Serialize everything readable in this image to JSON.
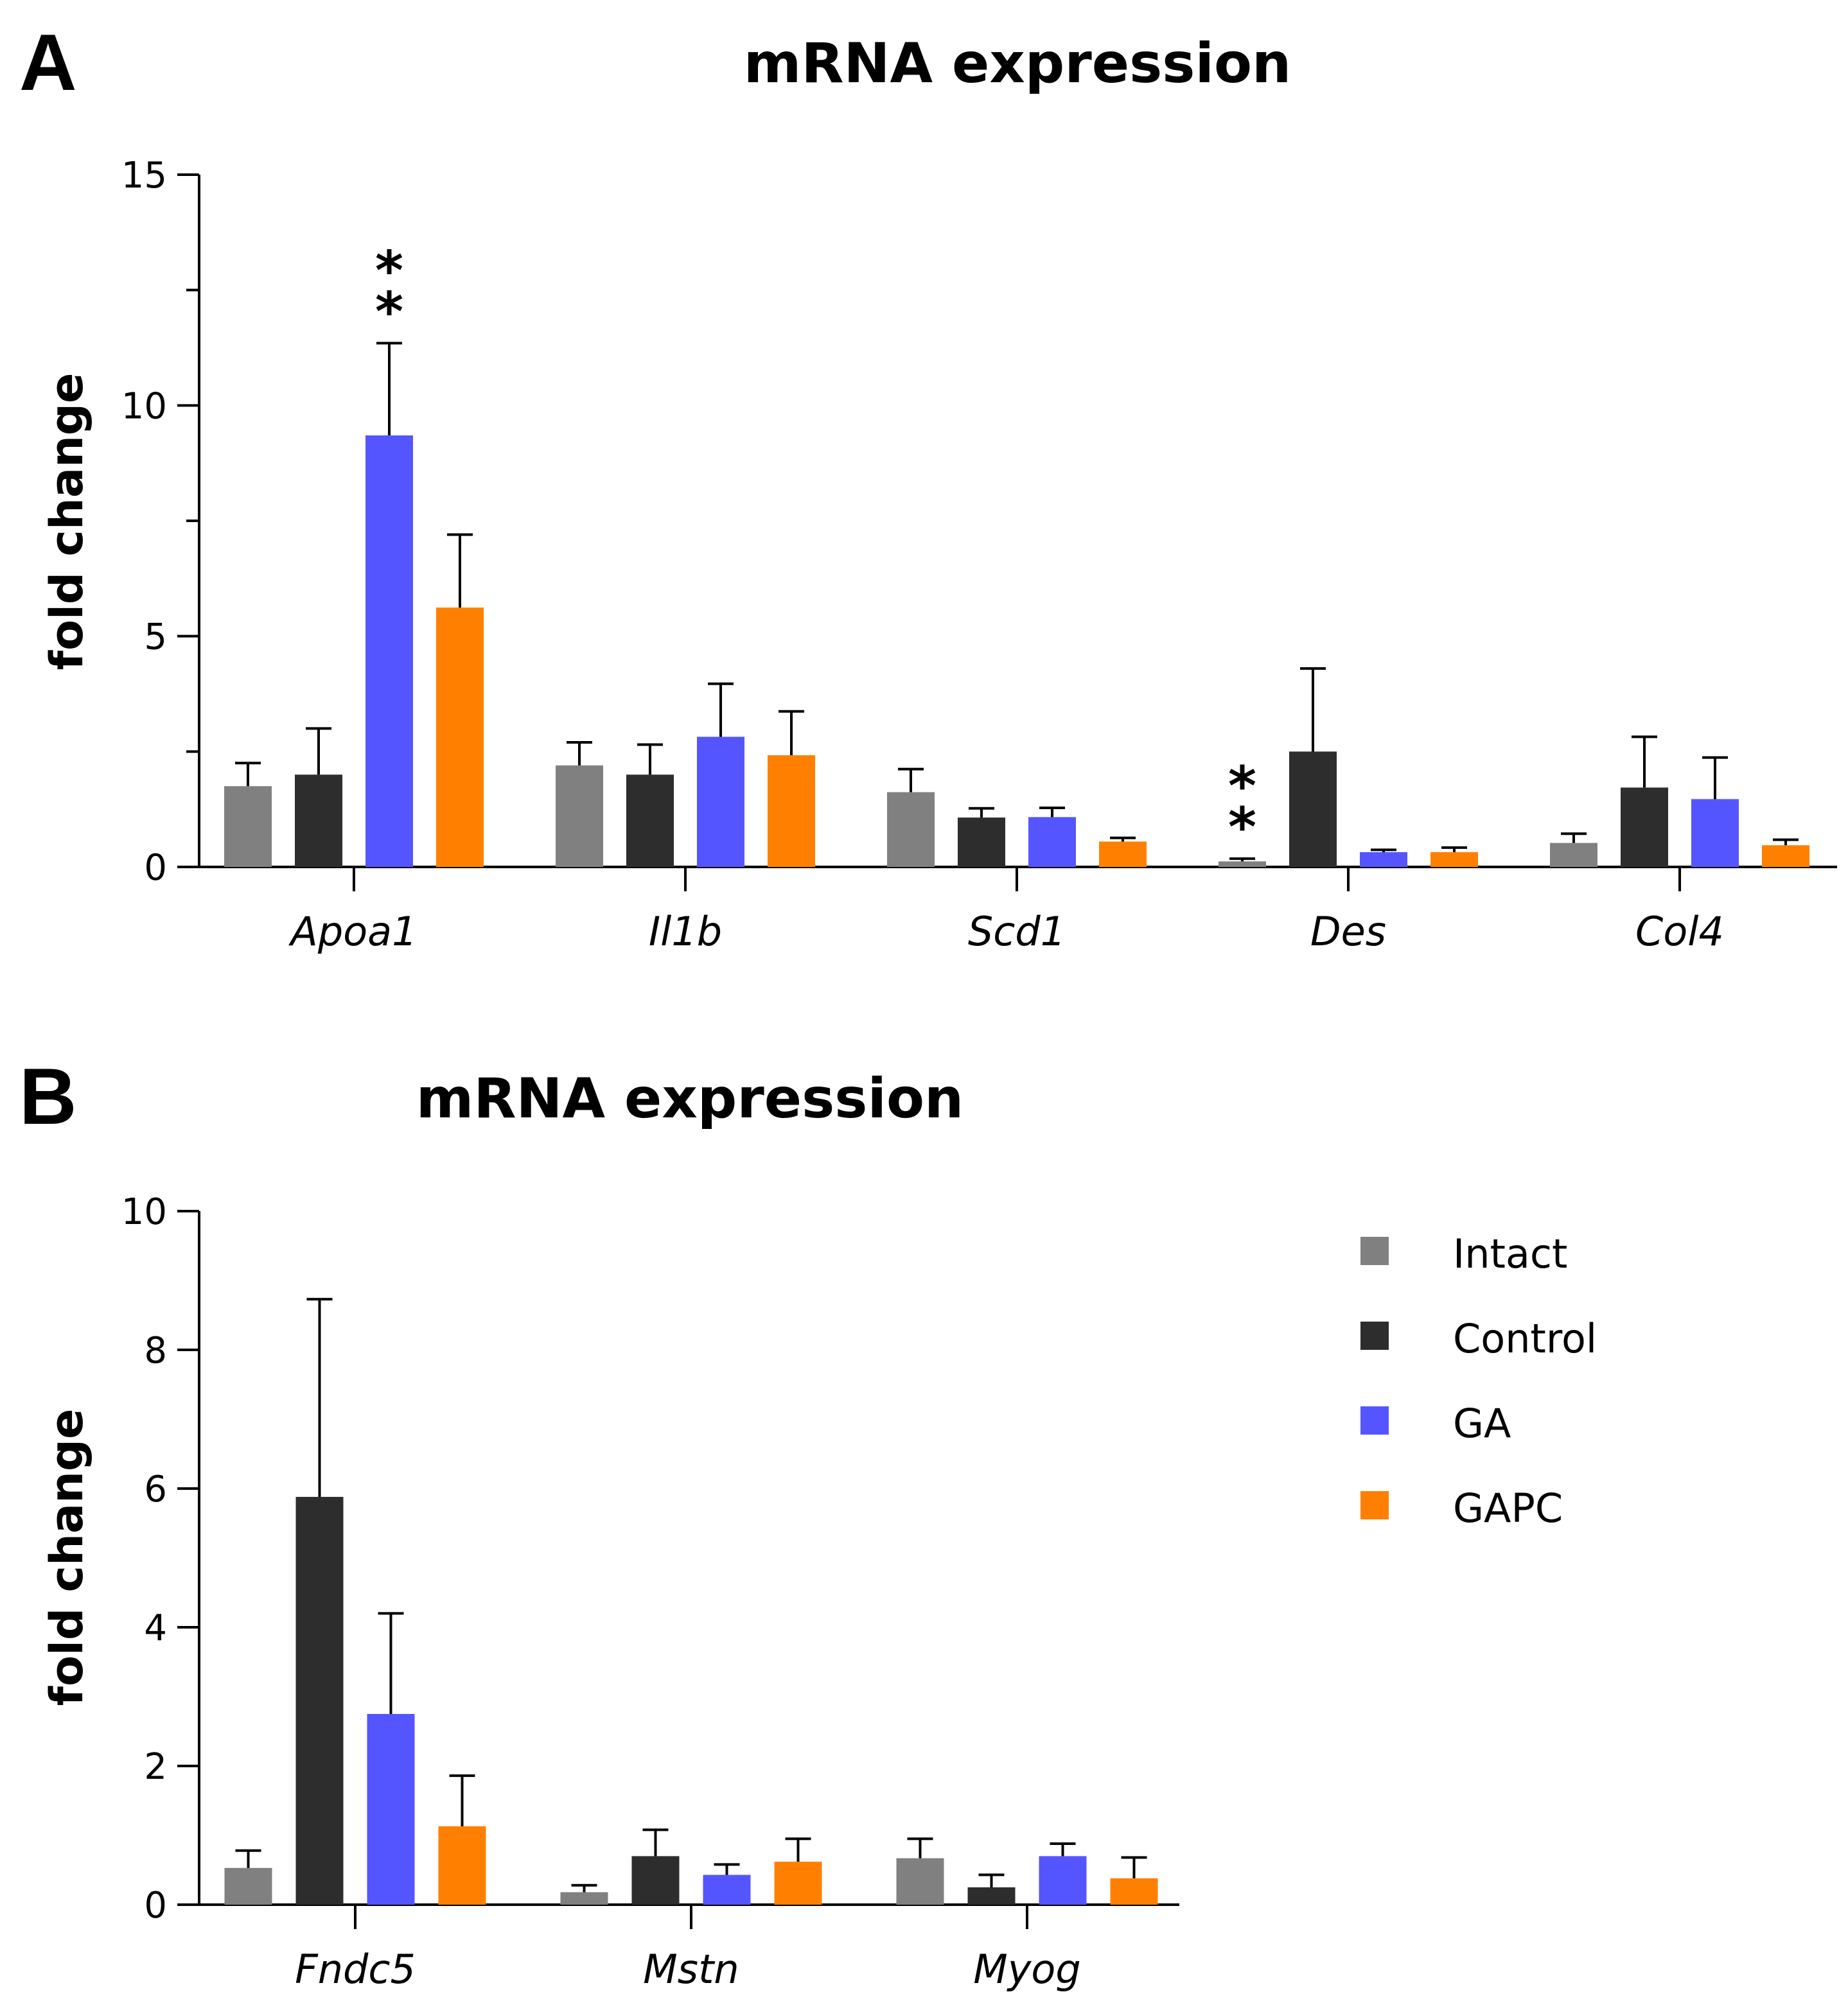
{
  "legend": {
    "items": [
      {
        "label": "Intact",
        "color": "#808080"
      },
      {
        "label": "Control",
        "color": "#2d2d2d"
      },
      {
        "label": "GA",
        "color": "#5555ff"
      },
      {
        "label": "GAPC",
        "color": "#ff8000"
      }
    ]
  },
  "chart_data": [
    {
      "panel": "A",
      "type": "bar",
      "title": "mRNA expression",
      "xlabel": "",
      "ylabel": "fold change",
      "ylim": [
        0,
        15
      ],
      "yticks": [
        0,
        5,
        10,
        15
      ],
      "ytick_labels": [
        "0",
        "5",
        "10",
        "15"
      ],
      "categories": [
        "Apoa1",
        "Il1b",
        "Scd1",
        "Des",
        "Col4"
      ],
      "series": [
        {
          "name": "Intact",
          "values": [
            1.75,
            2.2,
            1.62,
            0.12,
            0.52
          ],
          "errors": [
            0.5,
            0.5,
            0.5,
            0.06,
            0.2
          ]
        },
        {
          "name": "Control",
          "values": [
            2.0,
            2.0,
            1.07,
            2.5,
            1.72
          ],
          "errors": [
            1.0,
            0.65,
            0.2,
            1.8,
            1.1
          ]
        },
        {
          "name": "GA",
          "values": [
            9.35,
            2.82,
            1.08,
            0.32,
            1.47
          ],
          "errors": [
            2.0,
            1.15,
            0.2,
            0.05,
            0.9
          ]
        },
        {
          "name": "GAPC",
          "values": [
            5.62,
            2.42,
            0.55,
            0.32,
            0.47
          ],
          "errors": [
            1.58,
            0.95,
            0.08,
            0.1,
            0.12
          ]
        }
      ],
      "annotations": [
        {
          "text": "*",
          "category": "Apoa1",
          "series": "GA",
          "line": 1
        },
        {
          "text": "*",
          "category": "Apoa1",
          "series": "GA",
          "line": 2
        },
        {
          "text": "*",
          "category": "Des",
          "series": "Intact",
          "line": 1
        },
        {
          "text": "*",
          "category": "Des",
          "series": "Intact",
          "line": 2
        }
      ]
    },
    {
      "panel": "B",
      "type": "bar",
      "title": "mRNA expression",
      "xlabel": "",
      "ylabel": "fold change",
      "ylim": [
        0,
        10
      ],
      "yticks": [
        0,
        2,
        4,
        6,
        8,
        10
      ],
      "ytick_labels": [
        "0",
        "2",
        "4",
        "6",
        "8",
        "10"
      ],
      "categories": [
        "Fndc5",
        "Mstn",
        "Myog"
      ],
      "series": [
        {
          "name": "Intact",
          "values": [
            0.53,
            0.18,
            0.67
          ],
          "errors": [
            0.25,
            0.1,
            0.28
          ]
        },
        {
          "name": "Control",
          "values": [
            5.88,
            0.7,
            0.25
          ],
          "errors": [
            2.85,
            0.38,
            0.18
          ]
        },
        {
          "name": "GA",
          "values": [
            2.75,
            0.43,
            0.7
          ],
          "errors": [
            1.45,
            0.15,
            0.18
          ]
        },
        {
          "name": "GAPC",
          "values": [
            1.13,
            0.62,
            0.38
          ],
          "errors": [
            0.73,
            0.33,
            0.3
          ]
        }
      ],
      "annotations": []
    }
  ]
}
